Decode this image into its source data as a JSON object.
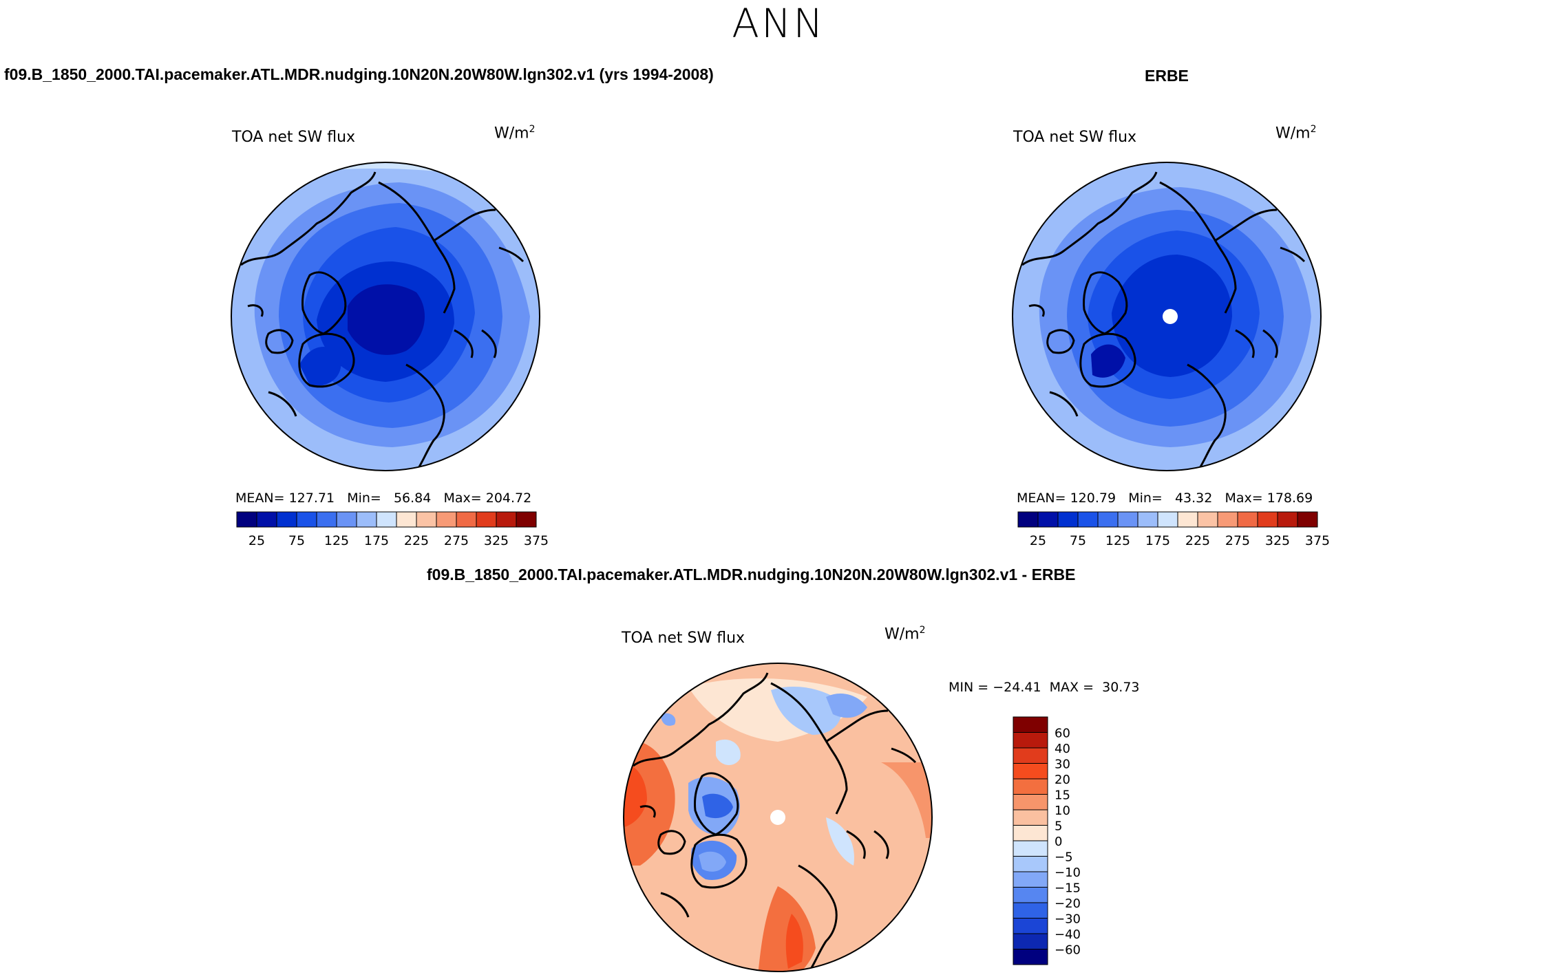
{
  "season": "ANN",
  "panels": {
    "model": {
      "title": "f09.B_1850_2000.TAI.pacemaker.ATL.MDR.nudging.10N20N.20W80W.lgn302.v1 (yrs 1994-2008)",
      "variable": "TOA net SW flux",
      "units_base": "W/m",
      "units_exp": "2",
      "mean_label": "MEAN=",
      "mean": "127.71",
      "min_label": "Min=",
      "min": "56.84",
      "max_label": "Max=",
      "max": "204.72"
    },
    "obs": {
      "title": "ERBE",
      "variable": "TOA net SW flux",
      "units_base": "W/m",
      "units_exp": "2",
      "mean_label": "MEAN=",
      "mean": "120.79",
      "min_label": "Min=",
      "min": "43.32",
      "max_label": "Max=",
      "max": "178.69"
    },
    "diff": {
      "title": "f09.B_1850_2000.TAI.pacemaker.ATL.MDR.nudging.10N20N.20W80W.lgn302.v1 - ERBE",
      "variable": "TOA net SW flux",
      "units_base": "W/m",
      "units_exp": "2",
      "min_label": "MIN =",
      "min": "−24.41",
      "max_label": "MAX =",
      "max": "30.73"
    }
  },
  "abs_colorbar": {
    "colors": [
      "#00007f",
      "#0010a8",
      "#0030d0",
      "#1a52e8",
      "#3b6ff0",
      "#6a93f5",
      "#9cbdfa",
      "#cfe4fd",
      "#fde6d3",
      "#fbc3a5",
      "#f79a76",
      "#f06a45",
      "#e13c1c",
      "#b81a0c",
      "#7f0000"
    ],
    "labels": [
      "25",
      "75",
      "125",
      "175",
      "225",
      "275",
      "325",
      "375"
    ]
  },
  "diff_colorbar": {
    "colors_top_to_bottom": [
      "#7f0000",
      "#b81a0c",
      "#e13c1c",
      "#f54c1e",
      "#f36f3f",
      "#f7956b",
      "#fac0a0",
      "#fde6d3",
      "#cfe4fd",
      "#a8c8fb",
      "#82a8f7",
      "#5686f1",
      "#2f63e6",
      "#1b45d6",
      "#0d28b2",
      "#00007f"
    ],
    "labels": [
      "60",
      "40",
      "30",
      "20",
      "15",
      "10",
      "5",
      "0",
      "−5",
      "−10",
      "−15",
      "−20",
      "−30",
      "−40",
      "−60"
    ]
  }
}
